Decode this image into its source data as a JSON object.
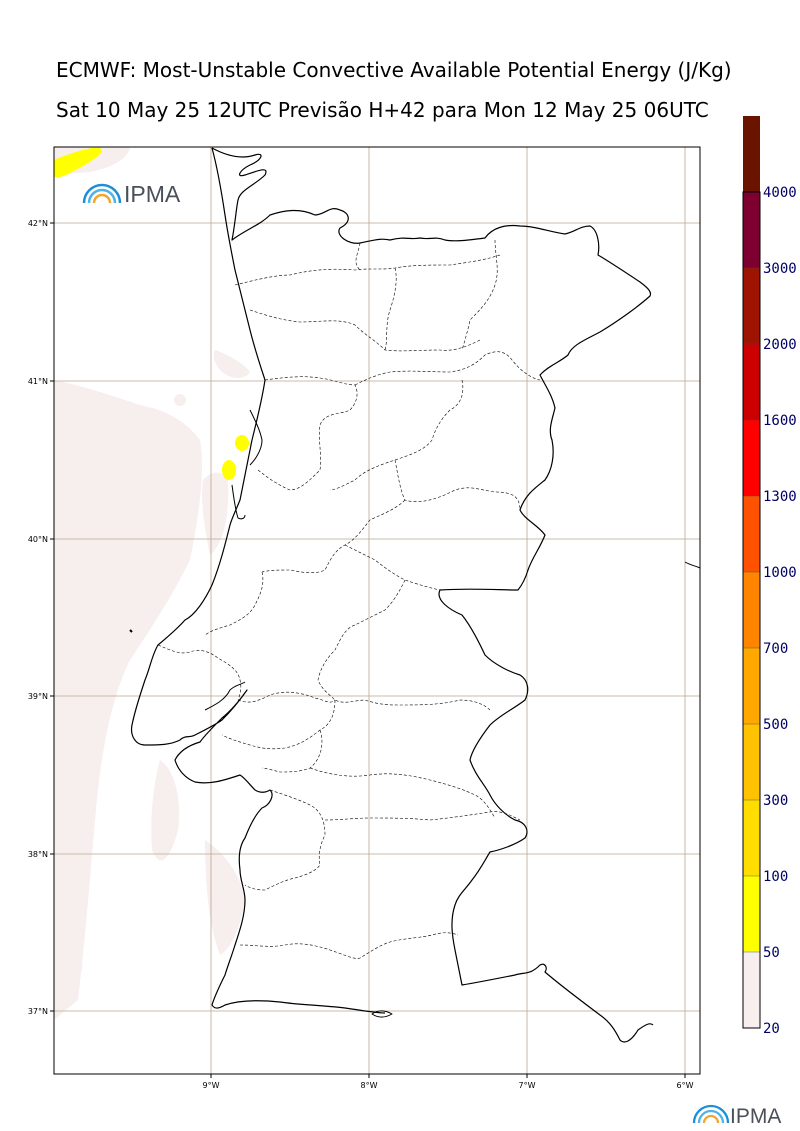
{
  "title_line1": "ECMWF: Most-Unstable Convective Available Potential Energy (J/Kg)",
  "title_line2": "Sat 10 May 25 12UTC Previsão H+42 para Mon 12 May 25 06UTC",
  "logo_text": "IPMA",
  "lat_labels": [
    "42°N",
    "41°N",
    "40°N",
    "39°N",
    "38°N",
    "37°N"
  ],
  "lon_labels": [
    "9°W",
    "8°W",
    "7°W",
    "6°W"
  ],
  "colorbar": {
    "levels": [
      "20",
      "50",
      "100",
      "300",
      "500",
      "700",
      "1000",
      "1300",
      "1600",
      "2000",
      "3000",
      "4000"
    ],
    "colors": [
      "#f7eeee",
      "#ffff00",
      "#ffdd00",
      "#ffc200",
      "#ffa800",
      "#ff8400",
      "#ff5200",
      "#ff0000",
      "#cc0000",
      "#9e1400",
      "#7e0030",
      "#6a1400"
    ]
  },
  "colors": {
    "grid": "#b8a990",
    "coast": "#000000",
    "cape_low": "#f7eeee",
    "cape_50": "#ffff00"
  }
}
